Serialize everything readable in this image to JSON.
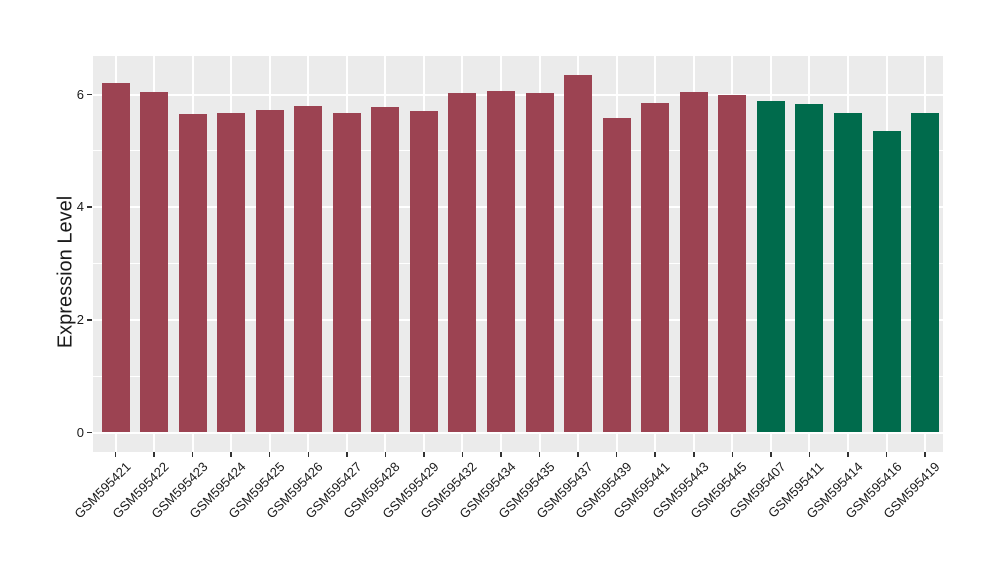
{
  "chart_data": {
    "type": "bar",
    "title": "",
    "ylabel": "Expression Level",
    "xlabel": "",
    "ylim": [
      -0.35,
      6.68
    ],
    "yticks": [
      0,
      2,
      4,
      6
    ],
    "grid": {
      "horizontal_major": [
        0,
        2,
        4,
        6
      ],
      "horizontal_minor": [
        1,
        3,
        5
      ],
      "vertical": "category-centers",
      "color": "#FFFFFF"
    },
    "legend_position": "none",
    "panel_background": "#EBEBEB",
    "categories": [
      "GSM595421",
      "GSM595422",
      "GSM595423",
      "GSM595424",
      "GSM595425",
      "GSM595426",
      "GSM595427",
      "GSM595428",
      "GSM595429",
      "GSM595432",
      "GSM595434",
      "GSM595435",
      "GSM595437",
      "GSM595439",
      "GSM595441",
      "GSM595443",
      "GSM595445",
      "GSM595407",
      "GSM595411",
      "GSM595414",
      "GSM595416",
      "GSM595419"
    ],
    "values": [
      6.21,
      6.04,
      5.65,
      5.68,
      5.72,
      5.79,
      5.67,
      5.77,
      5.71,
      6.02,
      6.07,
      6.03,
      6.35,
      5.58,
      5.85,
      6.04,
      6.0,
      5.88,
      5.84,
      5.67,
      5.35,
      5.67
    ],
    "groups": [
      "group1",
      "group1",
      "group1",
      "group1",
      "group1",
      "group1",
      "group1",
      "group1",
      "group1",
      "group1",
      "group1",
      "group1",
      "group1",
      "group1",
      "group1",
      "group1",
      "group1",
      "group2",
      "group2",
      "group2",
      "group2",
      "group2"
    ],
    "group_colors": {
      "group1": "#9C4352",
      "group2": "#006B4C"
    }
  }
}
